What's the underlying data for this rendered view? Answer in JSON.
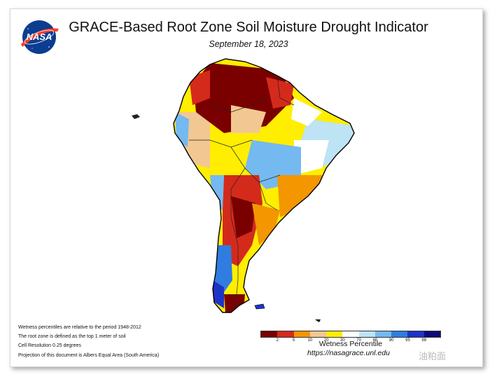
{
  "header": {
    "logo_text": "NASA",
    "title": "GRACE-Based Root Zone Soil Moisture Drought Indicator",
    "date": "September 18, 2023"
  },
  "notes": [
    "Wetness percentiles are relative to the period 1948-2012",
    "The root zone is defined as the top 1 meter of soil",
    "Cell Resolution 0.25 degrees",
    "Projection of this document is Albers Equal Area (South America)"
  ],
  "legend": {
    "title": "Wetness Percentile",
    "ticks": [
      "2",
      "5",
      "10",
      "20",
      "30",
      "70",
      "80",
      "90",
      "95",
      "98"
    ],
    "colors": [
      "#7a0000",
      "#d42a1c",
      "#f39600",
      "#f2c792",
      "#ffee00",
      "#ffffff",
      "#bde3f5",
      "#74b9f0",
      "#2f7de0",
      "#1d34c8",
      "#0f0a7a"
    ]
  },
  "source_url": "https://nasagrace.unl.edu",
  "watermark": "油粕面",
  "colors": {
    "extreme_dry": "#7a0000",
    "severe_dry": "#d42a1c",
    "moderate_dry": "#f39600",
    "abnormal_dry": "#f2c792",
    "dry": "#ffee00",
    "normal": "#ffffff",
    "wet": "#bde3f5",
    "very_wet": "#2f7de0",
    "extreme_wet": "#0f0a7a"
  }
}
